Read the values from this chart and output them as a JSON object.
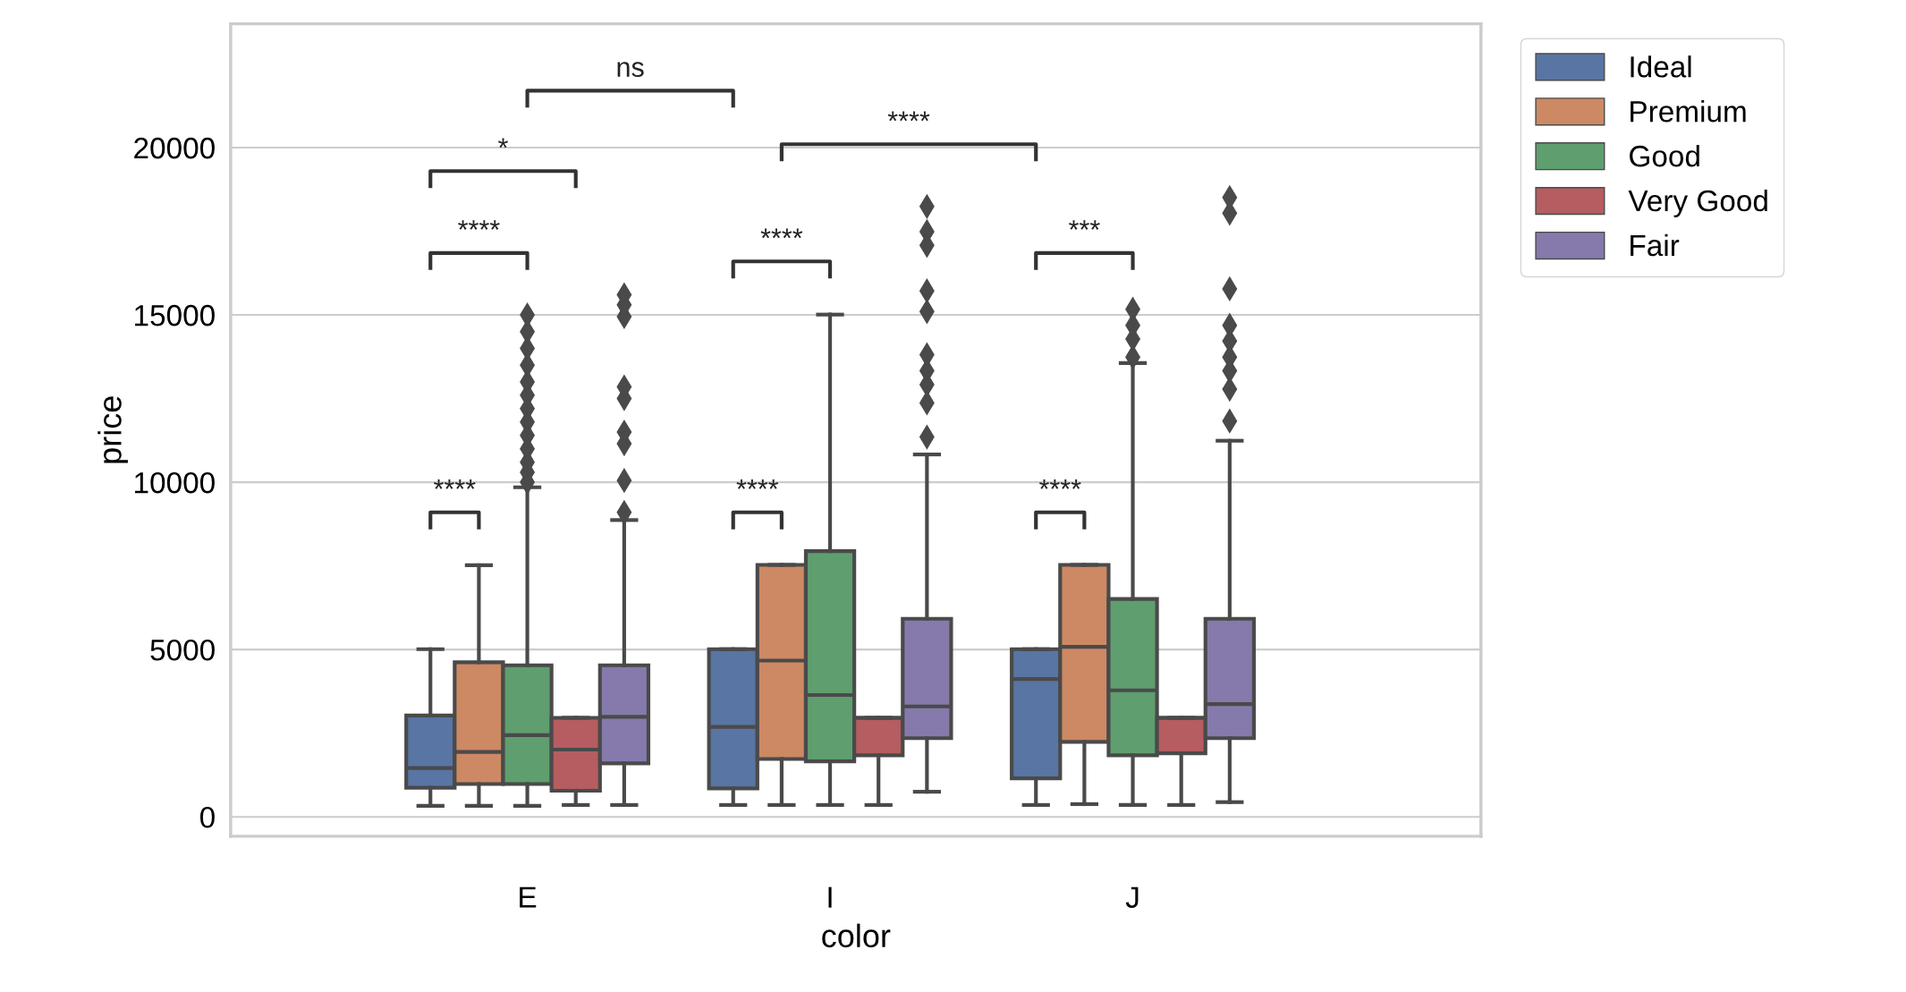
{
  "chart_data": {
    "type": "box",
    "xlabel": "color",
    "ylabel": "price",
    "categories": [
      "E",
      "I",
      "J"
    ],
    "series": [
      {
        "name": "Ideal",
        "color": "#5875a4",
        "boxes": [
          {
            "low": 330,
            "q1": 870,
            "median": 1460,
            "q3": 3030,
            "high": 5010
          },
          {
            "low": 355,
            "q1": 850,
            "median": 2690,
            "q3": 5010,
            "high": 5010
          },
          {
            "low": 355,
            "q1": 1150,
            "median": 4120,
            "q3": 5010,
            "high": 5010
          }
        ]
      },
      {
        "name": "Premium",
        "color": "#cc8963",
        "boxes": [
          {
            "low": 330,
            "q1": 980,
            "median": 1940,
            "q3": 4620,
            "high": 7520
          },
          {
            "low": 355,
            "q1": 1730,
            "median": 4670,
            "q3": 7530,
            "high": 7530
          },
          {
            "low": 380,
            "q1": 2240,
            "median": 5080,
            "q3": 7530,
            "high": 7530
          }
        ]
      },
      {
        "name": "Good",
        "color": "#5f9e6e",
        "boxes": [
          {
            "low": 330,
            "q1": 980,
            "median": 2440,
            "q3": 4530,
            "high": 9850,
            "outliers": [
              10000,
              10300,
              10600,
              11000,
              11400,
              11800,
              12200,
              12600,
              13000,
              13500,
              14000,
              14500,
              15000
            ]
          },
          {
            "low": 355,
            "q1": 1660,
            "median": 3640,
            "q3": 7940,
            "high": 15010
          },
          {
            "low": 355,
            "q1": 1840,
            "median": 3780,
            "q3": 6510,
            "high": 13560,
            "outliers": [
              13740,
              14280,
              14690,
              15170
            ]
          }
        ]
      },
      {
        "name": "Very Good",
        "color": "#b55d60",
        "boxes": [
          {
            "low": 355,
            "q1": 780,
            "median": 2010,
            "q3": 2960,
            "high": 2960
          },
          {
            "low": 355,
            "q1": 1840,
            "median": 2960,
            "q3": 2960,
            "high": 2960
          },
          {
            "low": 355,
            "q1": 1900,
            "median": 2960,
            "q3": 2960,
            "high": 2960
          }
        ]
      },
      {
        "name": "Fair",
        "color": "#857aab",
        "boxes": [
          {
            "low": 355,
            "q1": 1600,
            "median": 2990,
            "q3": 4530,
            "high": 8870,
            "outliers": [
              9100,
              10050,
              11150,
              11500,
              12500,
              12850,
              14950,
              15300,
              15600
            ]
          },
          {
            "low": 750,
            "q1": 2350,
            "median": 3300,
            "q3": 5920,
            "high": 10830,
            "outliers": [
              11350,
              12370,
              12920,
              13330,
              13810,
              15100,
              15720,
              17080,
              17490,
              18240
            ]
          },
          {
            "low": 440,
            "q1": 2350,
            "median": 3370,
            "q3": 5920,
            "high": 11240,
            "outliers": [
              11830,
              12780,
              13330,
              13740,
              14220,
              14690,
              15780,
              18040,
              18510
            ]
          }
        ]
      }
    ],
    "ylim": [
      -580,
      23700
    ],
    "yticks": [
      0,
      5000,
      10000,
      15000,
      20000
    ],
    "grid": "y",
    "legend": "top right",
    "marker": "diamond",
    "annotations": [
      "****",
      "****",
      "*",
      "ns",
      "****",
      "****",
      "****",
      "****",
      "***"
    ]
  }
}
